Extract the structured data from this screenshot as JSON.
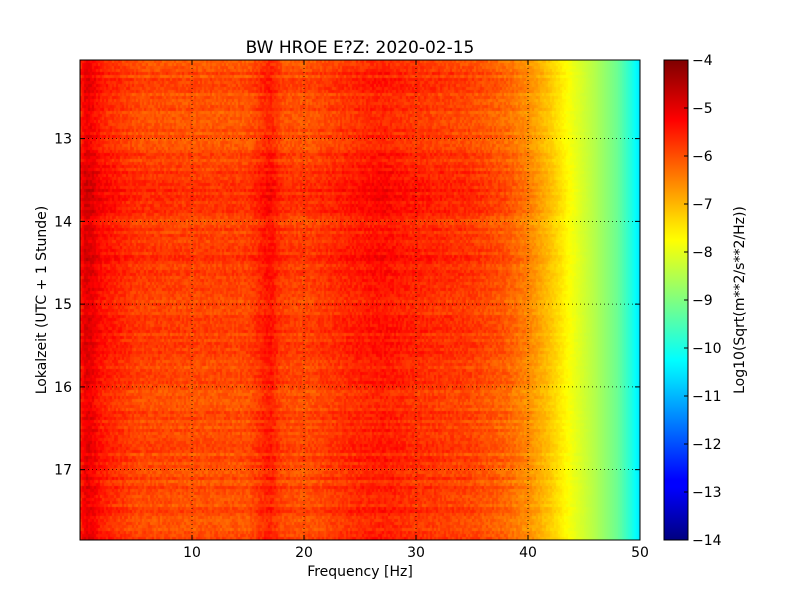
{
  "chart_data": {
    "type": "heatmap",
    "title": "BW HROE E?Z: 2020-02-15",
    "xlabel": "Frequency [Hz]",
    "ylabel": "Lokalzeit (UTC + 1 Stunde)",
    "xlim": [
      0,
      50
    ],
    "ylim": [
      12.05,
      17.85
    ],
    "y_inverted": true,
    "x_ticks": [
      10,
      20,
      30,
      40,
      50
    ],
    "x_tick_labels": [
      "10",
      "20",
      "30",
      "40",
      "50"
    ],
    "y_ticks": [
      13,
      14,
      15,
      16,
      17
    ],
    "y_tick_labels": [
      "13",
      "14",
      "15",
      "16",
      "17"
    ],
    "grid": true,
    "grid_style": "dotted",
    "colormap": "jet",
    "colorbar": {
      "label": "Log10(Sqrt(m**2/s**2/Hz))",
      "min": -14,
      "max": -4,
      "ticks": [
        -4,
        -5,
        -6,
        -7,
        -8,
        -9,
        -10,
        -11,
        -12,
        -13,
        -14
      ],
      "tick_labels": [
        "−4",
        "−5",
        "−6",
        "−7",
        "−8",
        "−9",
        "−10",
        "−11",
        "−12",
        "−13",
        "−14"
      ]
    },
    "frequency_profile": {
      "frequency_hz": [
        0,
        0.5,
        1,
        2,
        5,
        10,
        15,
        16.5,
        17,
        18,
        20,
        25,
        27,
        30,
        35,
        38,
        40,
        42,
        44,
        46,
        48,
        49,
        50
      ],
      "level": [
        -5.6,
        -5.0,
        -5.1,
        -5.5,
        -5.9,
        -6.0,
        -6.0,
        -5.6,
        -5.5,
        -5.9,
        -6.0,
        -5.6,
        -5.5,
        -5.7,
        -5.9,
        -6.2,
        -6.6,
        -7.2,
        -7.9,
        -8.5,
        -9.2,
        -9.8,
        -10.5
      ]
    },
    "time_profile": {
      "time_h": [
        12.05,
        13.0,
        13.3,
        13.6,
        14.0,
        14.5,
        15.0,
        15.5,
        16.0,
        16.5,
        17.0,
        17.85
      ],
      "offset": [
        0.0,
        -0.1,
        0.1,
        0.35,
        0.1,
        0.2,
        0.0,
        0.1,
        -0.05,
        0.0,
        -0.05,
        0.0
      ]
    }
  }
}
